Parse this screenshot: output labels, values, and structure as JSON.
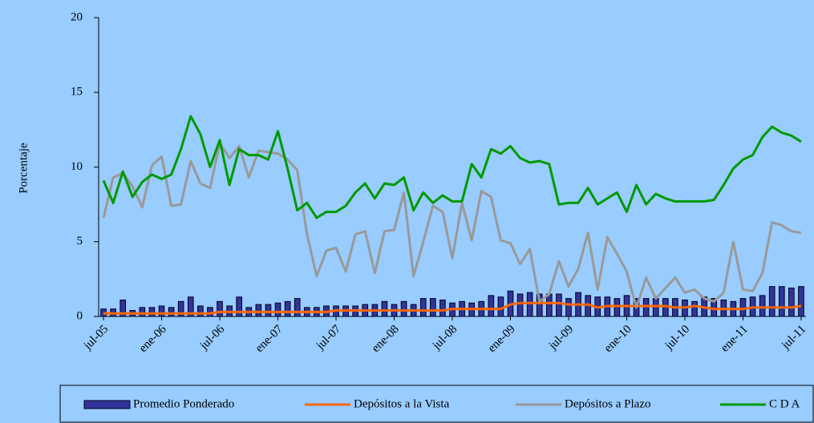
{
  "chart_data": {
    "type": "combo",
    "y_label": "Porcentaje",
    "categories": [
      "jul-05",
      null,
      null,
      null,
      null,
      null,
      "ene-06",
      null,
      null,
      null,
      null,
      null,
      "jul-06",
      null,
      null,
      null,
      null,
      null,
      "ene-07",
      null,
      null,
      null,
      null,
      null,
      "jul-07",
      null,
      null,
      null,
      null,
      null,
      "ene-08",
      null,
      null,
      null,
      null,
      null,
      "jul-08",
      null,
      null,
      null,
      null,
      null,
      "ene-09",
      null,
      null,
      null,
      null,
      null,
      "jul-09",
      null,
      null,
      null,
      null,
      null,
      "ene-10",
      null,
      null,
      null,
      null,
      null,
      "jul-10",
      null,
      null,
      null,
      null,
      null,
      "ene-11",
      null,
      null,
      null,
      null,
      null,
      "jul-11"
    ],
    "ylim": [
      0,
      20
    ],
    "yticks": [
      0,
      5,
      10,
      15,
      20
    ],
    "legend": "bottom",
    "series": [
      {
        "name": "Promedio Ponderado",
        "type": "bar",
        "color": "#333399",
        "values": [
          0.5,
          0.5,
          1.1,
          0.4,
          0.6,
          0.6,
          0.7,
          0.6,
          1.0,
          1.3,
          0.7,
          0.6,
          1.0,
          0.7,
          1.3,
          0.6,
          0.8,
          0.8,
          0.9,
          1.0,
          1.2,
          0.6,
          0.6,
          0.7,
          0.7,
          0.7,
          0.7,
          0.8,
          0.8,
          1.0,
          0.8,
          1.0,
          0.8,
          1.2,
          1.2,
          1.1,
          0.9,
          1.0,
          0.9,
          1.0,
          1.4,
          1.3,
          1.7,
          1.5,
          1.6,
          1.5,
          1.5,
          1.5,
          1.2,
          1.6,
          1.4,
          1.3,
          1.3,
          1.2,
          1.4,
          1.2,
          1.2,
          1.2,
          1.2,
          1.2,
          1.1,
          1.0,
          1.3,
          1.2,
          1.1,
          1.0,
          1.2,
          1.3,
          1.4,
          2.0,
          2.0,
          1.9,
          2.0
        ]
      },
      {
        "name": "Depósitos a la Vista",
        "type": "line",
        "color": "#ff6600",
        "values": [
          0.2,
          0.2,
          0.2,
          0.2,
          0.2,
          0.2,
          0.2,
          0.2,
          0.2,
          0.2,
          0.2,
          0.2,
          0.3,
          0.3,
          0.3,
          0.3,
          0.3,
          0.3,
          0.3,
          0.3,
          0.3,
          0.3,
          0.3,
          0.3,
          0.4,
          0.4,
          0.4,
          0.4,
          0.4,
          0.4,
          0.4,
          0.4,
          0.4,
          0.4,
          0.4,
          0.4,
          0.5,
          0.5,
          0.5,
          0.5,
          0.5,
          0.5,
          0.8,
          0.9,
          0.9,
          0.9,
          0.9,
          0.9,
          0.8,
          0.8,
          0.8,
          0.6,
          0.7,
          0.7,
          0.7,
          0.7,
          0.7,
          0.7,
          0.7,
          0.6,
          0.6,
          0.7,
          0.6,
          0.5,
          0.5,
          0.5,
          0.5,
          0.6,
          0.6,
          0.6,
          0.6,
          0.6,
          0.7
        ]
      },
      {
        "name": "Depósitos a Plazo",
        "type": "line",
        "color": "#999999",
        "values": [
          6.6,
          9.3,
          9.6,
          8.7,
          7.3,
          10.1,
          10.7,
          7.4,
          7.5,
          10.4,
          8.9,
          8.6,
          11.6,
          10.6,
          11.4,
          9.3,
          11.1,
          11.0,
          10.9,
          10.5,
          9.8,
          5.5,
          2.7,
          4.4,
          4.6,
          3.0,
          5.5,
          5.7,
          2.9,
          5.7,
          5.8,
          8.3,
          2.7,
          5.0,
          7.4,
          7.0,
          3.9,
          7.6,
          5.1,
          8.4,
          8.0,
          5.1,
          4.9,
          3.5,
          4.5,
          1.0,
          1.5,
          3.7,
          2.0,
          3.2,
          5.6,
          1.8,
          5.3,
          4.2,
          3.0,
          0.6,
          2.6,
          1.2,
          1.9,
          2.6,
          1.6,
          1.8,
          1.2,
          1.0,
          1.6,
          5.0,
          1.8,
          1.7,
          2.9,
          6.3,
          6.1,
          5.7,
          5.6
        ]
      },
      {
        "name": "C D A",
        "type": "line",
        "color": "#009900",
        "values": [
          9.1,
          7.6,
          9.7,
          8.0,
          9.0,
          9.5,
          9.2,
          9.5,
          11.2,
          13.4,
          12.2,
          10.0,
          11.8,
          8.8,
          11.2,
          10.8,
          10.8,
          10.5,
          12.4,
          9.9,
          7.1,
          7.6,
          6.6,
          7.0,
          7.0,
          7.4,
          8.3,
          8.9,
          7.9,
          8.9,
          8.8,
          9.3,
          7.1,
          8.3,
          7.6,
          8.1,
          7.7,
          7.7,
          10.2,
          9.3,
          11.2,
          10.9,
          11.4,
          10.6,
          10.3,
          10.4,
          10.2,
          7.5,
          7.6,
          7.6,
          8.6,
          7.5,
          7.9,
          8.3,
          7.0,
          8.8,
          7.5,
          8.2,
          7.9,
          7.7,
          7.7,
          7.7,
          7.7,
          7.8,
          8.8,
          9.9,
          10.5,
          10.8,
          12.0,
          12.7,
          12.3,
          12.1,
          11.7
        ]
      }
    ]
  }
}
